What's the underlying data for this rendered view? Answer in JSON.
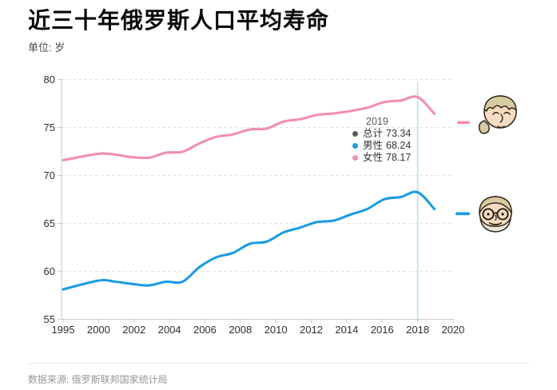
{
  "header": {
    "title": "近三十年俄罗斯人口平均寿命",
    "unit_label": "单位: 岁"
  },
  "tooltip": {
    "year": "2019",
    "items": [
      {
        "label": "总计",
        "value": "73.34",
        "color": "#5d5d5d"
      },
      {
        "label": "男性",
        "value": "68.24",
        "color": "#1b9ce1"
      },
      {
        "label": "女性",
        "value": "78.17",
        "color": "#f08fb0"
      }
    ]
  },
  "legend": [
    {
      "name": "女性",
      "icon": "old-woman-face-icon",
      "color": "#f08fb0"
    },
    {
      "name": "男性",
      "icon": "old-man-face-icon",
      "color": "#1b9ce1"
    }
  ],
  "footer": {
    "source": "数据来源: 俄罗斯联邦国家统计局"
  },
  "chart_data": {
    "type": "line",
    "title": "近三十年俄罗斯人口平均寿命",
    "unit": "岁",
    "x": [
      1995,
      2000,
      2001,
      2002,
      2003,
      2004,
      2005,
      2006,
      2007,
      2008,
      2009,
      2010,
      2011,
      2012,
      2013,
      2014,
      2015,
      2016,
      2017,
      2018,
      2019,
      2020
    ],
    "x_tick_labels": [
      "1995",
      "2000",
      "2002",
      "2004",
      "2006",
      "2008",
      "2010",
      "2012",
      "2014",
      "2016",
      "2018",
      "2020"
    ],
    "series": [
      {
        "name": "女性",
        "color": "#f08fb0",
        "values": [
          71.59,
          72.26,
          72.17,
          71.9,
          71.85,
          72.36,
          72.47,
          73.34,
          74.02,
          74.28,
          74.79,
          74.88,
          75.61,
          75.86,
          76.3,
          76.47,
          76.71,
          77.06,
          77.64,
          77.82,
          78.17,
          76.43
        ]
      },
      {
        "name": "男性",
        "color": "#1b9ce1",
        "values": [
          58.12,
          59.03,
          58.92,
          58.68,
          58.53,
          58.91,
          58.92,
          60.43,
          61.46,
          61.92,
          62.87,
          63.09,
          64.04,
          64.56,
          65.13,
          65.29,
          65.92,
          66.5,
          67.51,
          67.75,
          68.24,
          66.49
        ]
      }
    ],
    "ylim": [
      55,
      80
    ],
    "y_ticks": [
      55,
      60,
      65,
      70,
      75,
      80
    ],
    "grid": "dashed-horizontal",
    "legend_position": "right",
    "pointer_year": 2019,
    "pointer_color": "#b7e3e5",
    "axis_color": "#c9c9c9",
    "grid_color": "#e3e3e3",
    "tick_label_color": "#2e2e2e"
  }
}
